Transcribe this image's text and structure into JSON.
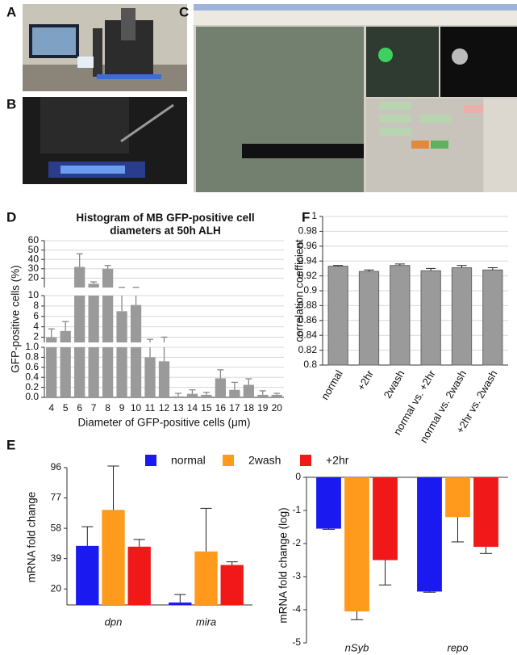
{
  "panel_labels": [
    "A",
    "B",
    "C",
    "D",
    "E",
    "F"
  ],
  "chart_data": [
    {
      "type": "broken_bar",
      "title": "Histogram of MB GFP-positive cell diameters at 50h ALH",
      "xlabel": "Diameter of GFP-positive cells (μm)",
      "ylabel": "GFP-positive cells (%)",
      "categories": [
        "4",
        "5",
        "6",
        "7",
        "8",
        "9",
        "10",
        "11",
        "12",
        "13",
        "14",
        "15",
        "16",
        "17",
        "18",
        "19",
        "20"
      ],
      "values": [
        2.0,
        3.2,
        32,
        14,
        30,
        7,
        8.2,
        0.8,
        0.72,
        0.02,
        0.07,
        0.05,
        0.38,
        0.15,
        0.25,
        0.05,
        0.05
      ],
      "errors": [
        1.6,
        1.8,
        14,
        2,
        3.5,
        3.2,
        2,
        0.8,
        1.3,
        0.06,
        0.08,
        0.05,
        0.17,
        0.15,
        0.12,
        0.08,
        0.03
      ],
      "color": "#9a9a9a",
      "grid": true,
      "segments": [
        {
          "ylim": [
            0,
            1
          ],
          "yticks": [
            {
              "value": 0,
              "label": "0.0"
            },
            0.2,
            0.4,
            0.6,
            0.8,
            {
              "value": 1,
              "label": "1.0"
            }
          ]
        },
        {
          "ylim": [
            1,
            10
          ],
          "yticks": [
            2,
            4,
            6,
            8,
            10
          ]
        },
        {
          "ylim": [
            10,
            60
          ],
          "yticks": [
            20,
            30,
            40,
            50,
            60
          ]
        }
      ]
    },
    {
      "type": "bar",
      "ylabel": "correlation coefficient",
      "categories": [
        "normal",
        "+2hr",
        "2wash",
        "normal vs. +2hr",
        "normal vs. 2wash",
        "+2hr vs. 2wash"
      ],
      "values": [
        0.933,
        0.926,
        0.934,
        0.927,
        0.931,
        0.928
      ],
      "errors": [
        0.001,
        0.002,
        0.002,
        0.003,
        0.003,
        0.003
      ],
      "color": "#9a9a9a",
      "grid": true,
      "ylim": [
        0.8,
        1
      ],
      "yticks": [
        0.8,
        0.82,
        0.84,
        0.86,
        0.88,
        0.9,
        0.92,
        0.94,
        0.96,
        0.98,
        1
      ]
    },
    {
      "type": "grouped_bar",
      "ylabel": "mRNA fold change",
      "legend": "top",
      "categories": [
        "dpn",
        "mira"
      ],
      "series": [
        {
          "name": "normal",
          "color": "#1a1af0",
          "values": [
            47,
            11.5
          ],
          "errors": [
            12,
            5
          ]
        },
        {
          "name": "2wash",
          "color": "#ff9a1c",
          "values": [
            69.5,
            43.5
          ],
          "errors": [
            27.5,
            27
          ]
        },
        {
          "name": "+2hr",
          "color": "#f01818",
          "values": [
            46.5,
            35
          ],
          "errors": [
            4.5,
            2
          ]
        }
      ],
      "ylim": [
        10,
        96
      ],
      "yticks": [
        20,
        39,
        58,
        77,
        96
      ]
    },
    {
      "type": "grouped_bar",
      "ylabel": "mRNA fold change (log)",
      "categories": [
        "nSyb",
        "repo"
      ],
      "series": [
        {
          "color": "#1a1af0",
          "values": [
            -1.55,
            -3.45
          ],
          "errors": [
            0.02,
            0.02
          ]
        },
        {
          "color": "#ff9a1c",
          "values": [
            -4.05,
            -1.2
          ],
          "errors": [
            0.25,
            0.75
          ]
        },
        {
          "color": "#f01818",
          "values": [
            -2.5,
            -2.1
          ],
          "errors": [
            0.75,
            0.2
          ]
        }
      ],
      "ylim": [
        -5,
        0
      ],
      "yticks": [
        -5,
        -4,
        -3,
        -2,
        -1,
        0
      ]
    }
  ]
}
